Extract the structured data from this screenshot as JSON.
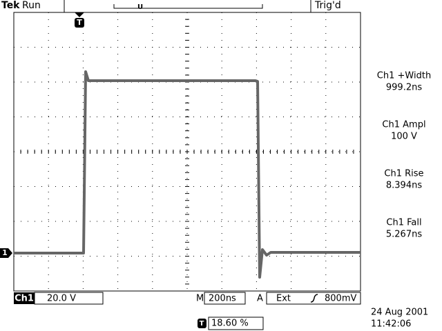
{
  "header": {
    "brand": "Tek",
    "state": "Run",
    "trigger_status": "Trig'd"
  },
  "markers": {
    "trigger": "T",
    "channel": "1",
    "trigger_position_marker": "U"
  },
  "measurements": [
    {
      "label": "Ch1 +Width",
      "value": "999.2ns"
    },
    {
      "label": "Ch1 Ampl",
      "value": "100 V"
    },
    {
      "label": "Ch1 Rise",
      "value": "8.394ns"
    },
    {
      "label": "Ch1 Fall",
      "value": "5.267ns"
    }
  ],
  "footer": {
    "channel": "Ch1",
    "volts_per_div": "20.0 V",
    "timebase_label": "M",
    "timebase": "200ns",
    "trigger_label": "A",
    "trigger_source": "Ext",
    "trigger_level": "800mV",
    "trigger_position_icon": "T",
    "trigger_position": "18.60 %",
    "date": "24 Aug 2001",
    "time": "11:42:06"
  }
}
